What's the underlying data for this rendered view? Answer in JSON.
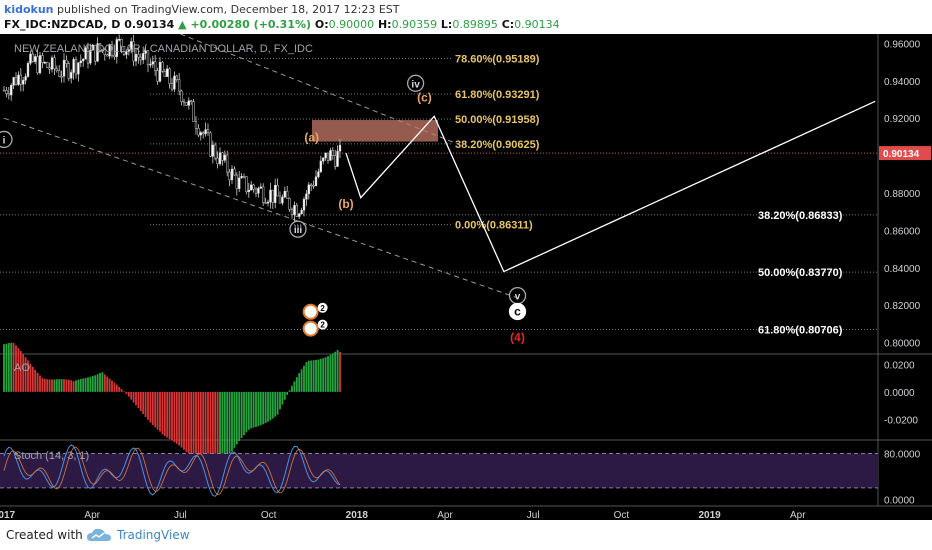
{
  "header": {
    "author": "kidokun",
    "published": " published on TradingView.com, December 18, 2017 12:23 EST",
    "symbol": "FX_IDC:NZDCAD, D",
    "price": "0.90134",
    "change": "▲ +0.00280 (+0.31%)",
    "o_label": "O:",
    "o": "0.90000",
    "h_label": "H:",
    "h": "0.90359",
    "l_label": "L:",
    "l": "0.89895",
    "c_label": "C:",
    "c": "0.90134"
  },
  "footer": {
    "created_with": "Created with",
    "brand": "TradingView"
  },
  "colors": {
    "fib_yellow": "#e8c465",
    "fib_white": "#ffffff",
    "bull_candle": "#ffffff",
    "bear_candle": "#000000",
    "ao_green": "#26a641",
    "ao_red": "#d93636",
    "stoch_fill": "#2c1a45",
    "price_label": "#e14b4b",
    "zone": "#c77a6a",
    "wave_orange": "#e8a769",
    "projection": "#ffffff",
    "red_wave": "#e02828"
  },
  "chart_data": [
    {
      "type": "line",
      "title": "NEW ZEALAND DOLLAR / CANADIAN DOLLAR, D, FX_IDC",
      "subtype": "candlestick",
      "x_tick_labels": [
        "2017",
        "Apr",
        "Jul",
        "Oct",
        "2018",
        "Apr",
        "Jul",
        "Oct",
        "2019",
        "Apr"
      ],
      "y_tick_labels": [
        "0.96000",
        "0.94000",
        "0.92000",
        "0.90000",
        "0.88000",
        "0.86000",
        "0.84000",
        "0.82000",
        "0.80000"
      ],
      "ylim": [
        0.795,
        0.965
      ],
      "last_price_label": "0.90134",
      "price_path": {
        "description": "daily closes approx, Jan 2017 - Dec 2017",
        "x": [
          "2017-01",
          "2017-02",
          "2017-03",
          "2017-04",
          "2017-05",
          "2017-06",
          "2017-07",
          "2017-08",
          "2017-09",
          "2017-10",
          "2017-11",
          "2017-12"
        ],
        "close": [
          0.935,
          0.95,
          0.945,
          0.955,
          0.96,
          0.948,
          0.935,
          0.905,
          0.885,
          0.88,
          0.872,
          0.9
        ]
      },
      "fib_upper": [
        {
          "label": "78.60%(0.95189)",
          "value": 0.95189
        },
        {
          "label": "61.80%(0.93291)",
          "value": 0.93291
        },
        {
          "label": "50.00%(0.91958)",
          "value": 0.91958
        },
        {
          "label": "38.20%(0.90625)",
          "value": 0.90625
        },
        {
          "label": "0.00%(0.86311)",
          "value": 0.86311
        }
      ],
      "fib_lower": [
        {
          "label": "38.20%(0.86833)",
          "value": 0.86833
        },
        {
          "label": "50.00%(0.83770)",
          "value": 0.8377
        },
        {
          "label": "61.80%(0.80706)",
          "value": 0.80706
        }
      ],
      "projection_path": [
        {
          "x": "2017-12-20",
          "y": 0.9013
        },
        {
          "x": "2018-01-05",
          "y": 0.8775
        },
        {
          "x": "2018-03-20",
          "y": 0.921
        },
        {
          "x": "2018-06-01",
          "y": 0.838
        },
        {
          "x": "2019-06-20",
          "y": 0.929
        }
      ],
      "wave_labels": [
        {
          "text": "i",
          "x": "2017-01-01",
          "y": 0.9065
        },
        {
          "text": "iii",
          "x": "2017-11-01",
          "y": 0.8585
        },
        {
          "text": "iv",
          "x": "2018-03-01",
          "y": 0.9365
        },
        {
          "text": "v",
          "x": "2018-06-15",
          "y": 0.823
        },
        {
          "text": "(a)",
          "x": "2017-11-15",
          "y": 0.9075
        },
        {
          "text": "(b)",
          "x": "2017-12-20",
          "y": 0.872
        },
        {
          "text": "(c)",
          "x": "2018-03-10",
          "y": 0.929
        },
        {
          "text": "c",
          "x": "2018-06-15",
          "y": 0.8145
        },
        {
          "text": "(4)",
          "x": "2018-06-15",
          "y": 0.8005
        }
      ],
      "event_badges": [
        {
          "text": "2",
          "x": "2017-11-20",
          "y": 0.8165
        },
        {
          "text": "2",
          "x": "2017-11-20",
          "y": 0.8075
        }
      ]
    },
    {
      "type": "bar",
      "title": "AO",
      "y_tick_labels": [
        "0.0200",
        "0.0000",
        "-0.0200"
      ],
      "ylim": [
        -0.032,
        0.026
      ]
    },
    {
      "type": "line",
      "title": "Stoch (14, 3, 1)",
      "y_tick_labels": [
        "80.0000",
        "0.0000"
      ],
      "ylim": [
        -8,
        100
      ],
      "bands": [
        80,
        20
      ]
    }
  ]
}
